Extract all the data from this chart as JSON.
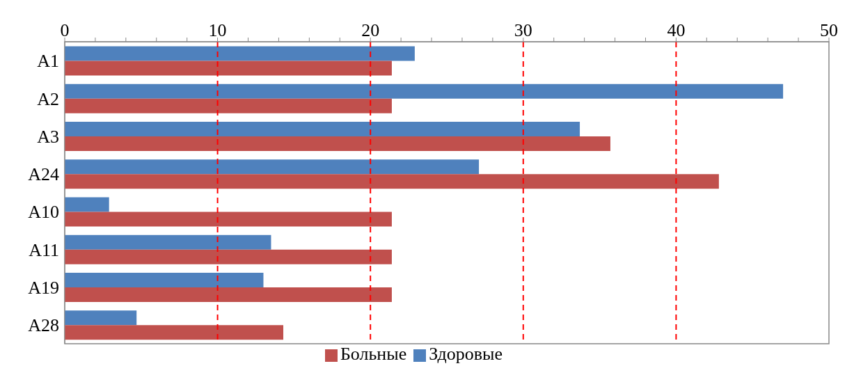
{
  "chart_data": {
    "type": "bar",
    "orientation": "horizontal",
    "categories": [
      "A1",
      "A2",
      "A3",
      "A24",
      "A10",
      "A11",
      "A19",
      "A28"
    ],
    "series": [
      {
        "name": "Здоровые",
        "color": "#4f81bd",
        "values": [
          22.9,
          47.0,
          33.7,
          27.1,
          2.9,
          13.5,
          13.0,
          4.7
        ]
      },
      {
        "name": "Больные",
        "color": "#c0504d",
        "values": [
          21.4,
          21.4,
          35.7,
          42.8,
          21.4,
          21.4,
          21.4,
          14.3
        ]
      }
    ],
    "xlim": [
      0,
      50
    ],
    "xticks": [
      0,
      {
        "value": 2,
        "label": null
      },
      {
        "value": 4,
        "label": null
      },
      {
        "value": 6,
        "label": null
      },
      {
        "value": 8,
        "label": null
      },
      10,
      {
        "value": 12,
        "label": null
      },
      {
        "value": 14,
        "label": null
      },
      {
        "value": 16,
        "label": null
      },
      {
        "value": 18,
        "label": null
      },
      20,
      {
        "value": 22,
        "label": null
      },
      {
        "value": 24,
        "label": null
      },
      {
        "value": 26,
        "label": null
      },
      {
        "value": 28,
        "label": null
      },
      30,
      {
        "value": 32,
        "label": null
      },
      {
        "value": 34,
        "label": null
      },
      {
        "value": 36,
        "label": null
      },
      {
        "value": 38,
        "label": null
      },
      40,
      {
        "value": 42,
        "label": null
      },
      {
        "value": 44,
        "label": null
      },
      {
        "value": 46,
        "label": null
      },
      {
        "value": 48,
        "label": null
      },
      50
    ],
    "ref_lines": [
      {
        "axis": "x",
        "value": 10,
        "color": "#ff0000",
        "line_style": "dashed"
      },
      {
        "axis": "x",
        "value": 20,
        "color": "#ff0000",
        "line_style": "dashed"
      },
      {
        "axis": "x",
        "value": 30,
        "color": "#ff0000",
        "line_style": "dashed"
      },
      {
        "axis": "x",
        "value": 40,
        "color": "#ff0000",
        "line_style": "dashed"
      }
    ],
    "grid": false,
    "legend": "bottom"
  }
}
